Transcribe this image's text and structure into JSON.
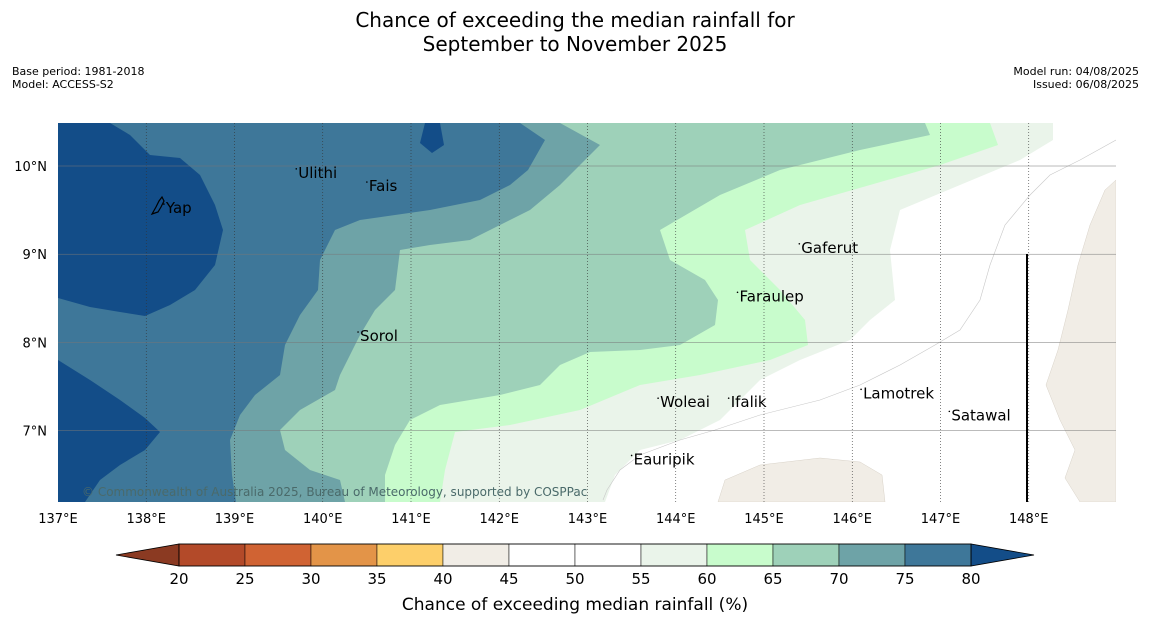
{
  "title": {
    "line1": "Chance of exceeding the median rainfall for",
    "line2": "September to November 2025"
  },
  "meta_left": {
    "base_period": "Base period: 1981-2018",
    "model": "Model: ACCESS-S2"
  },
  "meta_right": {
    "model_run": "Model run: 04/08/2025",
    "issued": "Issued: 06/08/2025"
  },
  "map": {
    "lon_range": [
      137,
      149
    ],
    "lat_range": [
      6.2,
      10.5
    ],
    "lon_ticks": [
      "137°E",
      "138°E",
      "139°E",
      "140°E",
      "141°E",
      "142°E",
      "143°E",
      "144°E",
      "145°E",
      "146°E",
      "147°E",
      "148°E"
    ],
    "lat_ticks": [
      "10°N",
      "9°N",
      "8°N",
      "7°N"
    ],
    "places": [
      {
        "name": "Ulithi",
        "lon": 139.7,
        "lat": 9.9
      },
      {
        "name": "Fais",
        "lon": 140.5,
        "lat": 9.75
      },
      {
        "name": "Yap",
        "lon": 138.2,
        "lat": 9.5
      },
      {
        "name": "Gaferut",
        "lon": 145.4,
        "lat": 9.05
      },
      {
        "name": "Faraulep",
        "lon": 144.7,
        "lat": 8.5
      },
      {
        "name": "Sorol",
        "lon": 140.4,
        "lat": 8.05
      },
      {
        "name": "Lamotrek",
        "lon": 146.1,
        "lat": 7.4
      },
      {
        "name": "Woleai",
        "lon": 143.8,
        "lat": 7.3
      },
      {
        "name": "Ifalik",
        "lon": 144.6,
        "lat": 7.3
      },
      {
        "name": "Satawal",
        "lon": 147.1,
        "lat": 7.15
      },
      {
        "name": "Eauripik",
        "lon": 143.5,
        "lat": 6.65
      }
    ],
    "credit": "© Commonwealth of Australia 2025, Bureau of Meteorology, supported by COSPPac"
  },
  "colorbar": {
    "label": "Chance of exceeding median rainfall (%)",
    "ticks": [
      "20",
      "25",
      "30",
      "35",
      "40",
      "45",
      "50",
      "55",
      "60",
      "65",
      "70",
      "75",
      "80"
    ],
    "colors": {
      "below20": "#8b3a22",
      "20-25": "#b34a29",
      "25-30": "#d06333",
      "30-35": "#e39448",
      "35-40": "#fdcf6a",
      "40-45": "#f1ede6",
      "45-50": "#ffffff",
      "50-55": "#ffffff",
      "55-60": "#eaf4ea",
      "60-65": "#c8fccc",
      "65-70": "#9ed1b9",
      "70-75": "#6ea3a7",
      "75-80": "#3e7799",
      "above80": "#134d88"
    }
  }
}
